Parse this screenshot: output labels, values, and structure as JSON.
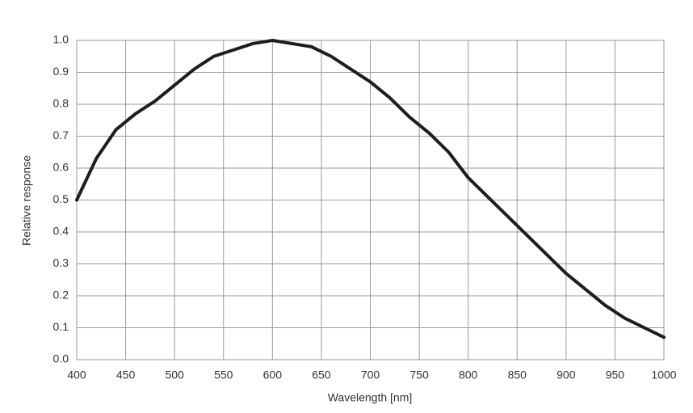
{
  "chart_data": {
    "type": "line",
    "x": [
      400,
      420,
      440,
      460,
      480,
      500,
      520,
      540,
      560,
      580,
      600,
      620,
      640,
      660,
      680,
      700,
      720,
      740,
      760,
      780,
      800,
      820,
      840,
      860,
      880,
      900,
      920,
      940,
      960,
      980,
      1000
    ],
    "series": [
      {
        "color": "#1e1e1e",
        "values": [
          0.5,
          0.63,
          0.72,
          0.77,
          0.81,
          0.86,
          0.91,
          0.95,
          0.97,
          0.99,
          1.0,
          0.99,
          0.98,
          0.95,
          0.91,
          0.87,
          0.82,
          0.76,
          0.71,
          0.65,
          0.57,
          0.51,
          0.45,
          0.39,
          0.33,
          0.27,
          0.22,
          0.17,
          0.13,
          0.1,
          0.07
        ]
      }
    ],
    "xlabel": "Wavelength [nm]",
    "ylabel": "Relative response",
    "xlim": [
      400,
      1000
    ],
    "xticks": [
      400,
      450,
      500,
      550,
      600,
      650,
      700,
      750,
      800,
      850,
      900,
      950,
      1000
    ],
    "ylim": [
      0,
      1
    ],
    "yticks": [
      {
        "value": 0,
        "label": "0.0"
      },
      0.1,
      0.2,
      0.3,
      0.4,
      0.5,
      0.6,
      0.7,
      0.8,
      0.9,
      {
        "value": 1,
        "label": "1.0"
      }
    ],
    "grid": true
  }
}
